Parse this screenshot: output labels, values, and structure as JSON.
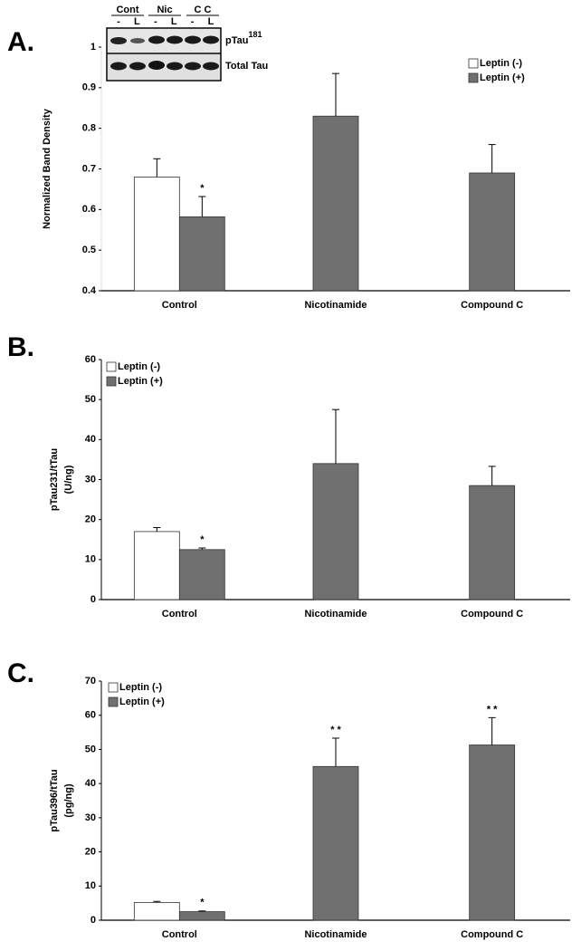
{
  "chart_data": [
    {
      "type": "bar",
      "panel": "A.",
      "ylabel": [
        "Normalized Band Density"
      ],
      "categories": [
        "Control",
        "Nicotinamide",
        "Compound C"
      ],
      "series": [
        {
          "name": "Leptin (-)",
          "color": "#ffffff",
          "values": [
            0.68,
            null,
            null
          ],
          "errors": [
            0.045,
            null,
            null
          ],
          "annotations": [
            null,
            null,
            null
          ]
        },
        {
          "name": "Leptin (+)",
          "color": "#707070",
          "values": [
            0.582,
            0.83,
            0.69
          ],
          "errors": [
            0.05,
            0.105,
            0.07
          ],
          "annotations": [
            "*",
            null,
            null
          ]
        }
      ],
      "ylim": [
        0.4,
        1
      ],
      "yticks": [
        0.4,
        0.5,
        0.6,
        0.7,
        0.8,
        0.9,
        1
      ],
      "legend": "upper right",
      "blot": {
        "groups": [
          "Cont",
          "Nic",
          "C C"
        ],
        "lanes": [
          "-",
          "L",
          "-",
          "L",
          "-",
          "L"
        ],
        "rows": [
          {
            "label": "pTau",
            "sup": "181"
          },
          {
            "label": "Total Tau"
          }
        ]
      }
    },
    {
      "type": "bar",
      "panel": "B.",
      "ylabel": [
        "pTau231/tTau",
        "(U/ng)"
      ],
      "categories": [
        "Control",
        "Nicotinamide",
        "Compound C"
      ],
      "series": [
        {
          "name": "Leptin (-)",
          "color": "#ffffff",
          "values": [
            17,
            null,
            null
          ],
          "errors": [
            1,
            null,
            null
          ],
          "annotations": [
            null,
            null,
            null
          ]
        },
        {
          "name": "Leptin (+)",
          "color": "#707070",
          "values": [
            12.5,
            34,
            28.5
          ],
          "errors": [
            0.4,
            13.5,
            4.8
          ],
          "annotations": [
            "*",
            null,
            null
          ]
        }
      ],
      "ylim": [
        0,
        60
      ],
      "yticks": [
        0,
        10,
        20,
        30,
        40,
        50,
        60
      ],
      "legend": "upper left"
    },
    {
      "type": "bar",
      "panel": "C.",
      "ylabel": [
        "pTau396/tTau",
        "(pg/ng)"
      ],
      "categories": [
        "Control",
        "Nicotinamide",
        "Compound C"
      ],
      "series": [
        {
          "name": "Leptin (-)",
          "color": "#ffffff",
          "values": [
            5.2,
            null,
            null
          ],
          "errors": [
            0.3,
            null,
            null
          ],
          "annotations": [
            null,
            null,
            null
          ]
        },
        {
          "name": "Leptin (+)",
          "color": "#707070",
          "values": [
            2.5,
            45,
            51.3
          ],
          "errors": [
            0.2,
            8.3,
            8
          ],
          "annotations": [
            "*",
            "* *",
            "* *"
          ]
        }
      ],
      "ylim": [
        0,
        70
      ],
      "yticks": [
        0,
        10,
        20,
        30,
        40,
        50,
        60,
        70
      ],
      "legend": "upper left"
    }
  ]
}
